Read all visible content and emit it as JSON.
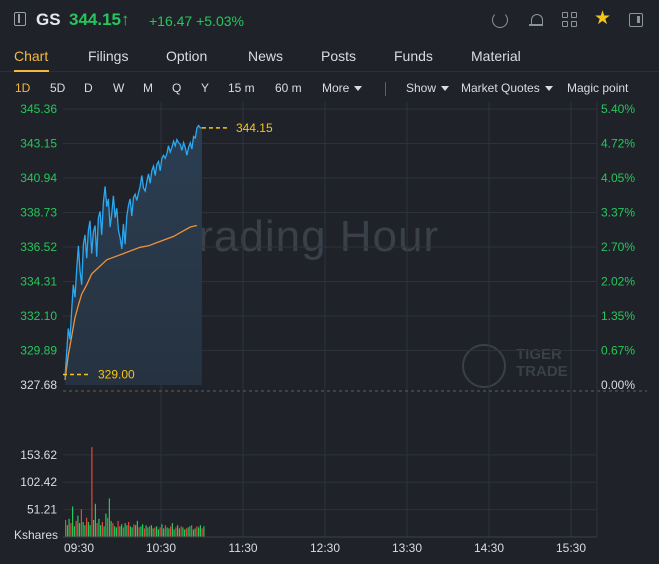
{
  "header": {
    "ticker": "GS",
    "price": "344.15↑",
    "change": "+16.47",
    "change_pct": "+5.03%",
    "icons": [
      "back-icon",
      "refresh-icon",
      "bell-icon",
      "grid-icon",
      "star-icon",
      "panel-icon"
    ],
    "up_color": "#26c65a",
    "star_color": "#f5c518"
  },
  "tabs": {
    "items": [
      {
        "label": "Chart",
        "active": true
      },
      {
        "label": "Filings"
      },
      {
        "label": "Option"
      },
      {
        "label": "News"
      },
      {
        "label": "Posts"
      },
      {
        "label": "Funds"
      },
      {
        "label": "Material"
      }
    ],
    "accent": "#f5b93b"
  },
  "toolbar": {
    "periods": [
      "1D",
      "5D",
      "D",
      "W",
      "M",
      "Q",
      "Y",
      "15 m",
      "60 m"
    ],
    "more": "More",
    "show": "Show",
    "market_quotes": "Market Quotes",
    "magic_point": "Magic point"
  },
  "watermark": {
    "text": "Trading Hour",
    "logo_line1": "TIGER",
    "logo_line2": "TRADE"
  },
  "chart_data": {
    "type": "line",
    "price_ticks": [
      "345.36",
      "343.15",
      "340.94",
      "338.73",
      "336.52",
      "334.31",
      "332.10",
      "329.89",
      "327.68"
    ],
    "pct_ticks": [
      "5.40%",
      "4.72%",
      "4.05%",
      "3.37%",
      "2.70%",
      "2.02%",
      "1.35%",
      "0.67%",
      "0.00%"
    ],
    "time_ticks": [
      "09:30",
      "10:30",
      "11:30",
      "12:30",
      "13:30",
      "14:30",
      "15:30"
    ],
    "volume_ticks": [
      "153.62",
      "102.42",
      "51.21"
    ],
    "volume_unit": "Kshares",
    "ylim": [
      327.68,
      345.36
    ],
    "volume_ylim": [
      0,
      200
    ],
    "open_label": "329.00",
    "last_label": "344.15",
    "series": [
      {
        "color": "#2aa8f2",
        "x": [
          0,
          1,
          2,
          3,
          4,
          5,
          6,
          7,
          8,
          9,
          10,
          11,
          12,
          13,
          14,
          15,
          16,
          17,
          18,
          19,
          20,
          21,
          22,
          23,
          24,
          25,
          26,
          27,
          28,
          29,
          30,
          31,
          32,
          33,
          34,
          35,
          36,
          37,
          38,
          39,
          40,
          41,
          42,
          43,
          44,
          45,
          46,
          47,
          48,
          49,
          50,
          51,
          52,
          53,
          54,
          55,
          56,
          57,
          58,
          59,
          60,
          61,
          62,
          63,
          64,
          65,
          66,
          67,
          68,
          69,
          70,
          71,
          72,
          73,
          74,
          75,
          76,
          77,
          78,
          79,
          80,
          81,
          82,
          83,
          84,
          85,
          86,
          87,
          88,
          89,
          90,
          91,
          92,
          93,
          94,
          95,
          96,
          97,
          98,
          99,
          100
        ],
        "values": [
          328.2,
          329.8,
          331.3,
          330.6,
          332.5,
          334.1,
          333.3,
          335.1,
          336.6,
          335.0,
          334.1,
          336.7,
          337.3,
          335.8,
          337.6,
          338.2,
          336.1,
          337.5,
          337.9,
          335.9,
          338.4,
          338.8,
          337.3,
          339.4,
          340.4,
          339.1,
          339.6,
          337.8,
          338.7,
          339.8,
          338.4,
          339.0,
          337.6,
          337.1,
          336.4,
          338.0,
          336.7,
          338.5,
          339.2,
          339.6,
          338.5,
          339.7,
          339.9,
          339.5,
          340.0,
          340.4,
          341.1,
          340.3,
          340.1,
          340.7,
          341.2,
          340.6,
          341.4,
          341.7,
          341.1,
          341.8,
          342.0,
          341.4,
          342.2,
          342.4,
          342.2,
          342.5,
          343.0,
          342.6,
          342.9,
          343.3,
          343.0,
          343.4,
          343.2,
          343.1,
          342.7,
          343.2,
          342.9,
          342.4,
          342.9,
          343.2,
          342.8,
          343.6,
          343.5,
          344.15,
          344.3,
          344.15,
          344.15,
          344.15,
          344.15,
          344.15,
          344.15,
          344.15,
          344.15,
          344.15,
          344.15,
          344.15,
          344.15,
          344.15,
          344.15,
          344.15,
          344.15,
          344.15,
          344.15,
          344.15,
          344.15
        ]
      },
      {
        "color": "#f0903a",
        "x": [
          0,
          2,
          4,
          6,
          8,
          10,
          13,
          16,
          20,
          25,
          30,
          35,
          40,
          45,
          50,
          55,
          60,
          65,
          70,
          75,
          79
        ],
        "values": [
          328.0,
          329.6,
          330.8,
          332.0,
          332.8,
          333.5,
          334.1,
          334.8,
          335.2,
          335.7,
          335.9,
          336.1,
          336.3,
          336.5,
          336.6,
          336.8,
          337.0,
          337.2,
          337.5,
          337.8,
          337.9
        ]
      }
    ],
    "volume": [
      32,
      22,
      34,
      26,
      57,
      20,
      30,
      40,
      26,
      52,
      28,
      22,
      36,
      28,
      22,
      168,
      32,
      62,
      26,
      34,
      22,
      28,
      20,
      44,
      36,
      72,
      30,
      26,
      20,
      18,
      30,
      20,
      24,
      18,
      26,
      22,
      28,
      20,
      18,
      24,
      22,
      30,
      18,
      20,
      24,
      16,
      22,
      18,
      20,
      22,
      16,
      18,
      20,
      14,
      18,
      24,
      16,
      22,
      18,
      16,
      20,
      26,
      14,
      18,
      22,
      16,
      20,
      18,
      14,
      16,
      18,
      20,
      22,
      14,
      16,
      20,
      18,
      22,
      16,
      20
    ],
    "volume_up_color": "#26c65a",
    "volume_down_color": "#e5453a"
  }
}
